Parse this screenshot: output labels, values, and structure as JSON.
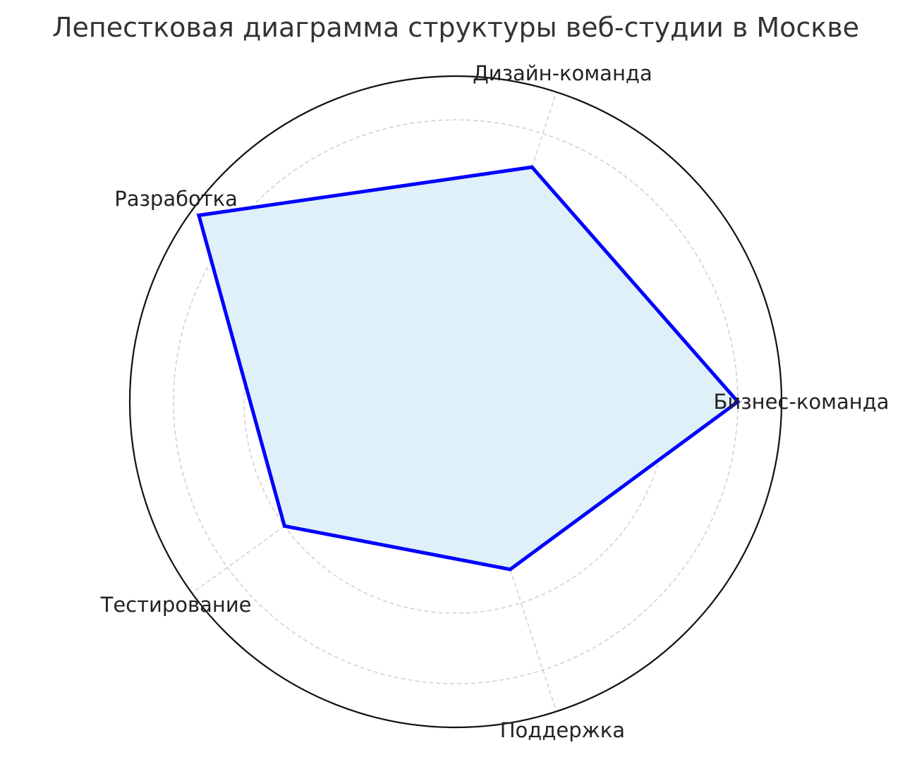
{
  "chart_data": {
    "type": "radar",
    "title": "Лепестковая диаграмма структуры веб-студии в Москве",
    "categories": [
      "Бизнес-команда",
      "Дизайн-команда",
      "Разработка",
      "Тестирование",
      "Поддержка"
    ],
    "values": [
      8,
      7,
      9,
      6,
      5
    ],
    "rlim": [
      0,
      9.24
    ],
    "rgrid": [
      2,
      4,
      6,
      8
    ],
    "radial_tick_labels_visible": false,
    "grid": true,
    "colors": {
      "line": "#0000ff",
      "fill": "#dff0f8",
      "grid": "#c8c8c8",
      "frame": "#111111"
    }
  }
}
